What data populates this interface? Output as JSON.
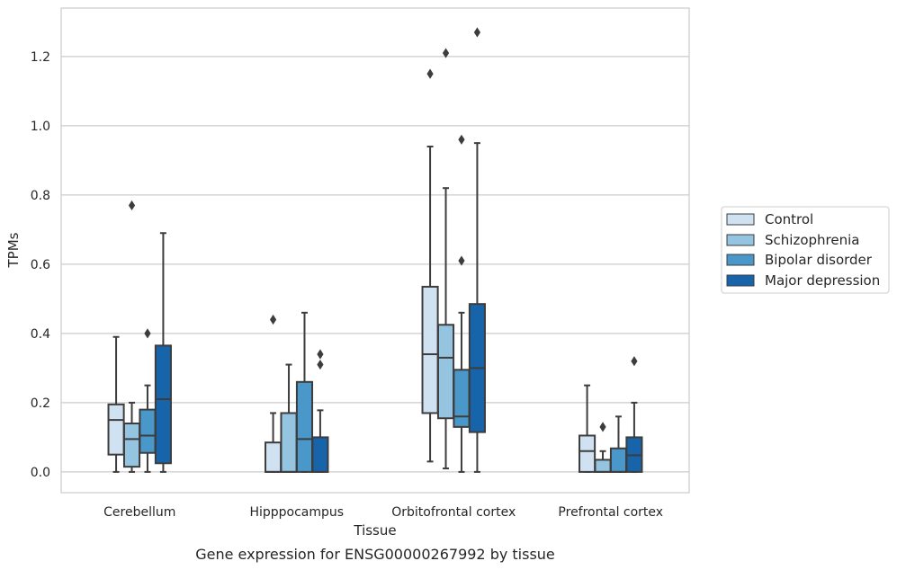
{
  "chart_data": {
    "type": "boxplot",
    "xlabel": "Tissue",
    "ylabel": "TPMs",
    "caption": "Gene expression for ENSG00000267992 by tissue",
    "categories": [
      "Cerebellum",
      "Hipppocampus",
      "Orbitofrontal cortex",
      "Prefrontal cortex"
    ],
    "ylim": [
      -0.06,
      1.34
    ],
    "yticks": [
      0.0,
      0.2,
      0.4,
      0.6,
      0.8,
      1.0,
      1.2
    ],
    "ytick_labels": [
      "0.0",
      "0.2",
      "0.4",
      "0.6",
      "0.8",
      "1.0",
      "1.2"
    ],
    "grid": "horizontal",
    "legend_position": "right",
    "series": [
      {
        "name": "Control",
        "color": "#d0e1f2",
        "boxes": [
          {
            "whislo": 0.0,
            "q1": 0.05,
            "med": 0.15,
            "q3": 0.195,
            "whishi": 0.39,
            "fliers": []
          },
          {
            "whislo": 0.0,
            "q1": 0.0,
            "med": 0.0,
            "q3": 0.085,
            "whishi": 0.17,
            "fliers": [
              0.44
            ]
          },
          {
            "whislo": 0.03,
            "q1": 0.17,
            "med": 0.34,
            "q3": 0.535,
            "whishi": 0.94,
            "fliers": [
              1.15
            ]
          },
          {
            "whislo": 0.0,
            "q1": 0.0,
            "med": 0.06,
            "q3": 0.105,
            "whishi": 0.25,
            "fliers": []
          }
        ]
      },
      {
        "name": "Schizophrenia",
        "color": "#94c4df",
        "boxes": [
          {
            "whislo": 0.0,
            "q1": 0.015,
            "med": 0.095,
            "q3": 0.14,
            "whishi": 0.2,
            "fliers": [
              0.77
            ]
          },
          {
            "whislo": 0.0,
            "q1": 0.0,
            "med": 0.0,
            "q3": 0.17,
            "whishi": 0.31,
            "fliers": []
          },
          {
            "whislo": 0.01,
            "q1": 0.155,
            "med": 0.33,
            "q3": 0.425,
            "whishi": 0.82,
            "fliers": [
              1.21
            ]
          },
          {
            "whislo": 0.0,
            "q1": 0.0,
            "med": 0.0,
            "q3": 0.035,
            "whishi": 0.06,
            "fliers": [
              0.13
            ]
          }
        ]
      },
      {
        "name": "Bipolar disorder",
        "color": "#4a98c9",
        "boxes": [
          {
            "whislo": 0.0,
            "q1": 0.055,
            "med": 0.105,
            "q3": 0.18,
            "whishi": 0.25,
            "fliers": [
              0.4
            ]
          },
          {
            "whislo": 0.0,
            "q1": 0.0,
            "med": 0.095,
            "q3": 0.26,
            "whishi": 0.46,
            "fliers": []
          },
          {
            "whislo": 0.0,
            "q1": 0.13,
            "med": 0.16,
            "q3": 0.295,
            "whishi": 0.46,
            "fliers": [
              0.61,
              0.96
            ]
          },
          {
            "whislo": 0.0,
            "q1": 0.0,
            "med": 0.0,
            "q3": 0.068,
            "whishi": 0.16,
            "fliers": []
          }
        ]
      },
      {
        "name": "Major depression",
        "color": "#1764ab",
        "boxes": [
          {
            "whislo": 0.0,
            "q1": 0.025,
            "med": 0.21,
            "q3": 0.365,
            "whishi": 0.69,
            "fliers": []
          },
          {
            "whislo": 0.0,
            "q1": 0.0,
            "med": 0.0,
            "q3": 0.1,
            "whishi": 0.178,
            "fliers": [
              0.31,
              0.34
            ]
          },
          {
            "whislo": 0.0,
            "q1": 0.115,
            "med": 0.3,
            "q3": 0.485,
            "whishi": 0.95,
            "fliers": [
              1.27
            ]
          },
          {
            "whislo": 0.0,
            "q1": 0.0,
            "med": 0.048,
            "q3": 0.1,
            "whishi": 0.2,
            "fliers": [
              0.32
            ]
          }
        ]
      }
    ]
  }
}
